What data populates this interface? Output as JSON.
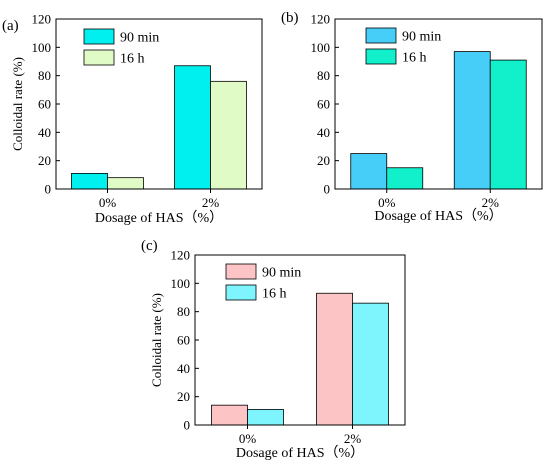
{
  "chart_data": [
    {
      "type": "bar",
      "panel_label": "(a)",
      "categories": [
        "0%",
        "2%"
      ],
      "series": [
        {
          "name": "90 min",
          "values": [
            11,
            87
          ],
          "color": "#00f0f0"
        },
        {
          "name": "16 h",
          "values": [
            8,
            76
          ],
          "color": "#e0fbc6"
        }
      ],
      "xlabel": "Dosage of HAS（%）",
      "ylabel": "Colloidal rate (%)",
      "ylim": [
        0,
        120
      ],
      "yticks": [
        "0",
        "20",
        "40",
        "60",
        "80",
        "100",
        "120"
      ],
      "legend": "top-left",
      "grid": false
    },
    {
      "type": "bar",
      "panel_label": "(b)",
      "categories": [
        "0%",
        "2%"
      ],
      "series": [
        {
          "name": "90 min",
          "values": [
            25,
            97
          ],
          "color": "#46cdf8"
        },
        {
          "name": "16 h",
          "values": [
            15,
            91
          ],
          "color": "#12efcb"
        }
      ],
      "xlabel": "Dosage of HAS（%）",
      "ylabel": "",
      "ylim": [
        0,
        120
      ],
      "yticks": [
        "0",
        "20",
        "40",
        "60",
        "80",
        "100",
        "120"
      ],
      "legend": "top-left",
      "grid": false
    },
    {
      "type": "bar",
      "panel_label": "(c)",
      "categories": [
        "0%",
        "2%"
      ],
      "series": [
        {
          "name": "90 min",
          "values": [
            14,
            93
          ],
          "color": "#fcc4c4"
        },
        {
          "name": "16 h",
          "values": [
            11,
            86
          ],
          "color": "#7ef4fc"
        }
      ],
      "xlabel": "Dosage of HAS（%）",
      "ylabel": "Colloidal rate (%)",
      "ylim": [
        0,
        120
      ],
      "yticks": [
        "0",
        "20",
        "40",
        "60",
        "80",
        "100",
        "120"
      ],
      "legend": "top-left",
      "grid": false
    }
  ]
}
